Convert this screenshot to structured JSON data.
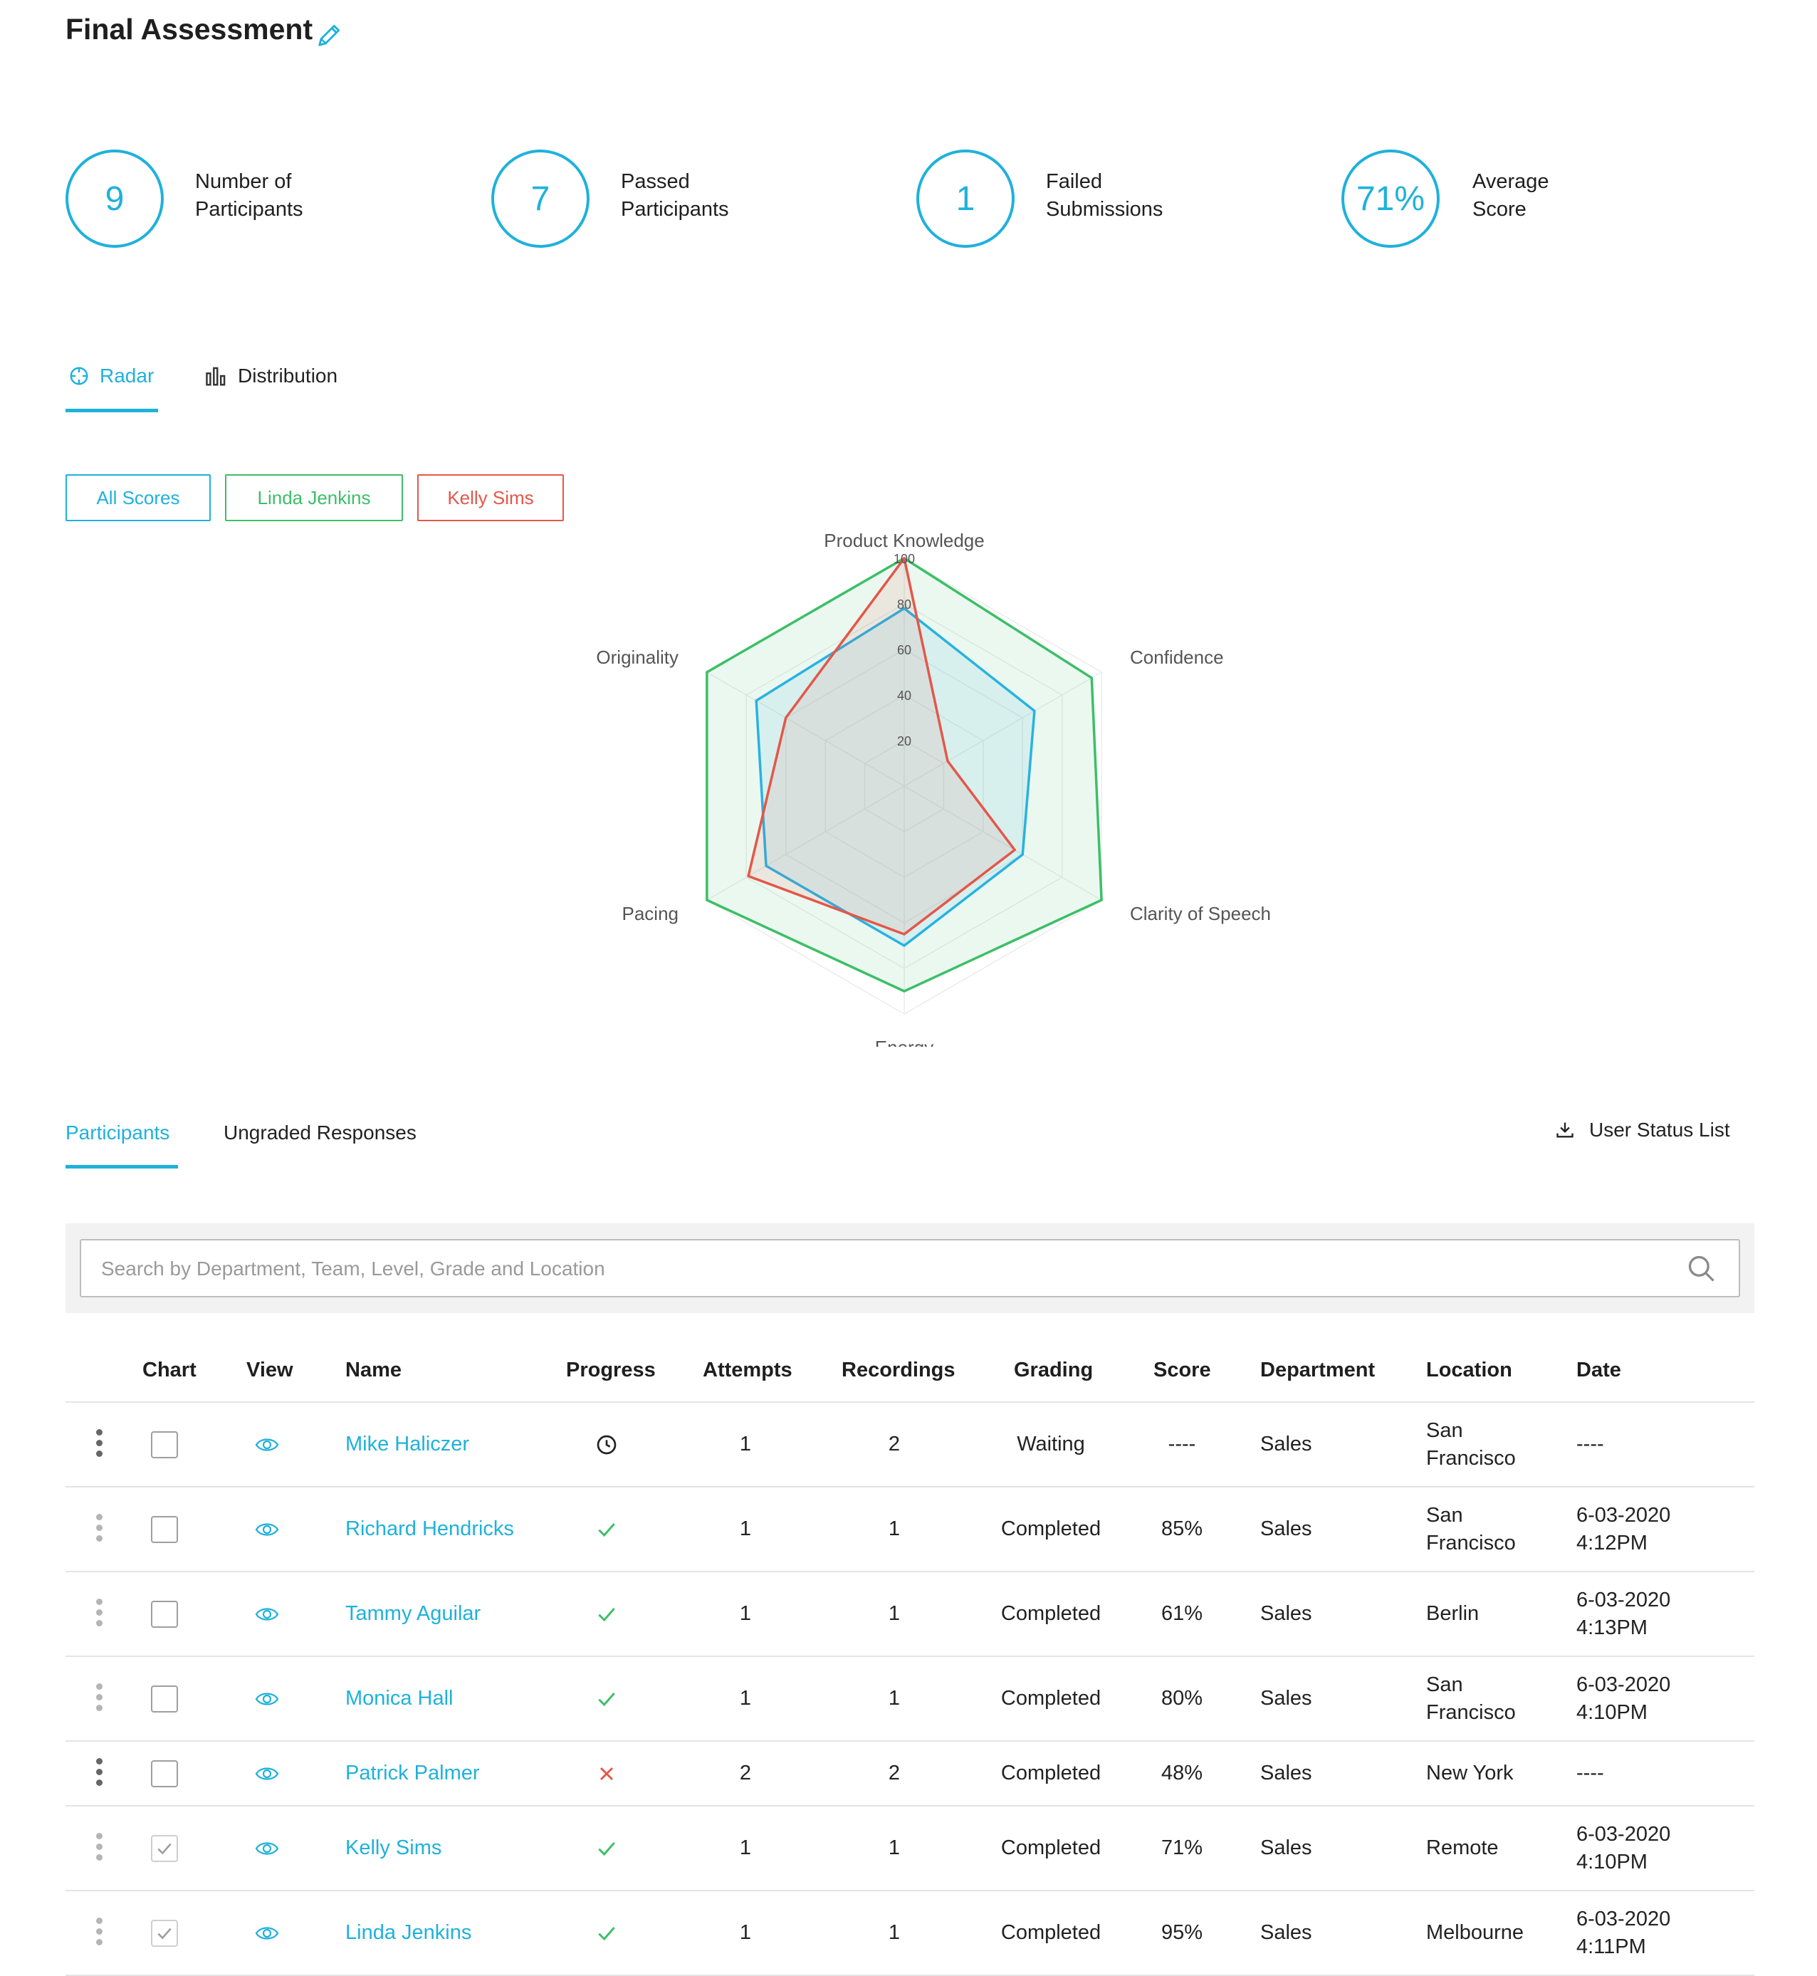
{
  "header": {
    "title": "Final Assessment",
    "edit_icon": "pencil-icon"
  },
  "colors": {
    "accent": "#1fb1dc",
    "green": "#3cbf67",
    "red": "#e4574a",
    "blue_series": "#29b2e0"
  },
  "stats": [
    {
      "value": "9",
      "label_line1": "Number of",
      "label_line2": "Participants"
    },
    {
      "value": "7",
      "label_line1": "Passed",
      "label_line2": "Participants"
    },
    {
      "value": "1",
      "label_line1": "Failed",
      "label_line2": "Submissions"
    },
    {
      "value": "71%",
      "label_line1": "Average",
      "label_line2": "Score"
    }
  ],
  "chart_tabs": [
    {
      "label": "Radar",
      "icon": "crosshair-icon",
      "active": true
    },
    {
      "label": "Distribution",
      "icon": "bar-chart-icon",
      "active": false
    }
  ],
  "filters": [
    {
      "label": "All Scores",
      "color": "#1fb1dc"
    },
    {
      "label": "Linda Jenkins",
      "color": "#3cbf67"
    },
    {
      "label": "Kelly Sims",
      "color": "#e4574a"
    }
  ],
  "chart_data": {
    "type": "radar",
    "axes": [
      "Product Knowledge",
      "Confidence",
      "Clarity of Speech",
      "Energy",
      "Pacing",
      "Originality"
    ],
    "ticks": [
      "20",
      "40",
      "60",
      "80",
      "100"
    ],
    "range": [
      0,
      100
    ],
    "series": [
      {
        "name": "Linda Jenkins",
        "color": "#3cbf67",
        "values": [
          100,
          95,
          100,
          90,
          100,
          100
        ]
      },
      {
        "name": "All Scores",
        "color": "#29b2e0",
        "values": [
          78,
          66,
          60,
          70,
          70,
          75
        ]
      },
      {
        "name": "Kelly Sims",
        "color": "#e4574a",
        "values": [
          100,
          22,
          56,
          65,
          79,
          60
        ]
      }
    ]
  },
  "list_tabs": [
    {
      "label": "Participants",
      "active": true
    },
    {
      "label": "Ungraded Responses",
      "active": false
    }
  ],
  "export": {
    "label": "User Status List",
    "icon": "download-icon"
  },
  "search": {
    "placeholder": "Search by Department, Team, Level, Grade and Location",
    "value": ""
  },
  "table": {
    "headers": [
      "Chart",
      "View",
      "Name",
      "Progress",
      "Attempts",
      "Recordings",
      "Grading",
      "Score",
      "Department",
      "Location",
      "Date"
    ],
    "rows": [
      {
        "name": "Mike Haliczer",
        "progress": "clock-icon",
        "attempts": "1",
        "recordings": "2",
        "grading": "Waiting",
        "score": "----",
        "department": "Sales",
        "location_line1": "San",
        "location_line2": "Francisco",
        "date_line1": "----",
        "date_line2": "",
        "checked": false,
        "dark_menu": true
      },
      {
        "name": "Richard Hendricks",
        "progress": "check-icon",
        "attempts": "1",
        "recordings": "1",
        "grading": "Completed",
        "score": "85%",
        "department": "Sales",
        "location_line1": "San",
        "location_line2": "Francisco",
        "date_line1": "6-03-2020",
        "date_line2": "4:12PM",
        "checked": false,
        "dark_menu": false
      },
      {
        "name": "Tammy Aguilar",
        "progress": "check-icon",
        "attempts": "1",
        "recordings": "1",
        "grading": "Completed",
        "score": "61%",
        "department": "Sales",
        "location_line1": "Berlin",
        "location_line2": "",
        "date_line1": "6-03-2020",
        "date_line2": "4:13PM",
        "checked": false,
        "dark_menu": false
      },
      {
        "name": "Monica Hall",
        "progress": "check-icon",
        "attempts": "1",
        "recordings": "1",
        "grading": "Completed",
        "score": "80%",
        "department": "Sales",
        "location_line1": "San",
        "location_line2": "Francisco",
        "date_line1": "6-03-2020",
        "date_line2": "4:10PM",
        "checked": false,
        "dark_menu": false
      },
      {
        "name": "Patrick Palmer",
        "progress": "x-icon",
        "attempts": "2",
        "recordings": "2",
        "grading": "Completed",
        "score": "48%",
        "department": "Sales",
        "location_line1": "New York",
        "location_line2": "",
        "date_line1": "----",
        "date_line2": "",
        "checked": false,
        "dark_menu": true
      },
      {
        "name": "Kelly Sims",
        "progress": "check-icon",
        "attempts": "1",
        "recordings": "1",
        "grading": "Completed",
        "score": "71%",
        "department": "Sales",
        "location_line1": "Remote",
        "location_line2": "",
        "date_line1": "6-03-2020",
        "date_line2": "4:10PM",
        "checked": true,
        "dark_menu": false
      },
      {
        "name": "Linda Jenkins",
        "progress": "check-icon",
        "attempts": "1",
        "recordings": "1",
        "grading": "Completed",
        "score": "95%",
        "department": "Sales",
        "location_line1": "Melbourne",
        "location_line2": "",
        "date_line1": "6-03-2020",
        "date_line2": "4:11PM",
        "checked": true,
        "dark_menu": false
      }
    ]
  }
}
